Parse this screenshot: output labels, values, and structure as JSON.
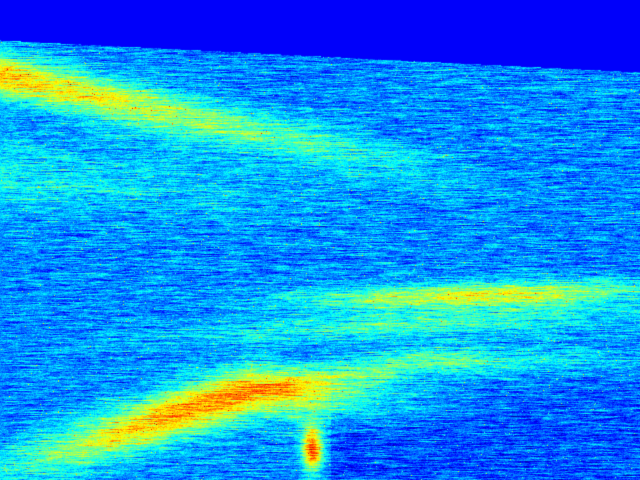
{
  "image": {
    "kind": "false-color heat map (jet colormap)",
    "colormap": [
      "#00008c",
      "#0000d8",
      "#0010ff",
      "#0060ff",
      "#00b0ff",
      "#00e8ff",
      "#30ffd0",
      "#a0ff60",
      "#f0ff20",
      "#ffc000",
      "#ff6000",
      "#e00000",
      "#800000"
    ],
    "background_color": "#0000d8"
  }
}
